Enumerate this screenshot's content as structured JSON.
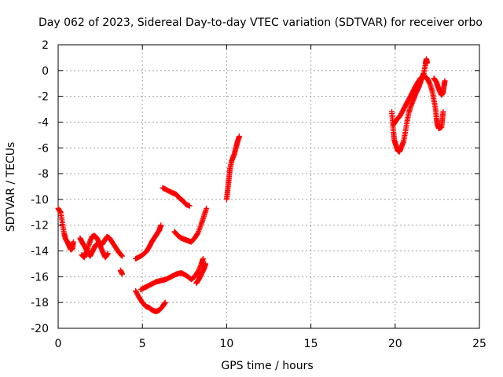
{
  "chart_data": {
    "type": "scatter",
    "title": "Day 062 of 2023, Sidereal Day-to-day VTEC variation (SDTVAR) for receiver orbo",
    "xlabel": "GPS time / hours",
    "ylabel": "SDTVAR / TECUs",
    "xlim": [
      0,
      25
    ],
    "ylim": [
      -20,
      2
    ],
    "xticks": [
      "0",
      "5",
      "10",
      "15",
      "20",
      "25"
    ],
    "yticks": [
      "2",
      "0",
      "-2",
      "-4",
      "-6",
      "-8",
      "-10",
      "-12",
      "-14",
      "-16",
      "-18",
      "-20"
    ],
    "grid": true,
    "marker": "+",
    "series_color": "#ff0000",
    "segments": [
      {
        "name": "seg-a",
        "points": [
          [
            0.0,
            -10.7
          ],
          [
            0.15,
            -11.0
          ],
          [
            0.25,
            -11.8
          ],
          [
            0.35,
            -12.6
          ],
          [
            0.45,
            -13.1
          ],
          [
            0.55,
            -13.3
          ],
          [
            0.65,
            -13.6
          ],
          [
            0.75,
            -13.9
          ],
          [
            0.85,
            -13.8
          ],
          [
            0.9,
            -13.3
          ]
        ]
      },
      {
        "name": "seg-b",
        "points": [
          [
            1.3,
            -13.0
          ],
          [
            1.45,
            -13.4
          ],
          [
            1.6,
            -13.7
          ],
          [
            1.75,
            -14.1
          ],
          [
            1.9,
            -14.4
          ],
          [
            2.05,
            -14.0
          ],
          [
            2.2,
            -13.6
          ],
          [
            2.35,
            -13.4
          ],
          [
            2.5,
            -13.6
          ],
          [
            2.65,
            -14.1
          ],
          [
            2.8,
            -14.5
          ],
          [
            2.95,
            -14.2
          ]
        ]
      },
      {
        "name": "seg-c",
        "points": [
          [
            1.4,
            -14.3
          ],
          [
            1.55,
            -14.5
          ],
          [
            1.7,
            -14.0
          ],
          [
            1.85,
            -13.4
          ],
          [
            2.0,
            -12.9
          ],
          [
            2.15,
            -12.8
          ],
          [
            2.3,
            -13.0
          ],
          [
            2.45,
            -13.4
          ],
          [
            2.6,
            -13.5
          ],
          [
            2.75,
            -13.2
          ],
          [
            2.9,
            -12.9
          ],
          [
            3.05,
            -13.0
          ],
          [
            3.2,
            -13.3
          ],
          [
            3.4,
            -13.7
          ],
          [
            3.6,
            -14.1
          ],
          [
            3.8,
            -14.4
          ]
        ]
      },
      {
        "name": "seg-d",
        "points": [
          [
            3.7,
            -15.5
          ],
          [
            3.8,
            -15.8
          ]
        ]
      },
      {
        "name": "seg-e",
        "points": [
          [
            4.6,
            -14.6
          ],
          [
            4.9,
            -14.4
          ],
          [
            5.2,
            -14.1
          ],
          [
            5.4,
            -13.7
          ],
          [
            5.55,
            -13.3
          ],
          [
            5.7,
            -13.0
          ],
          [
            5.85,
            -12.7
          ],
          [
            6.0,
            -12.4
          ],
          [
            6.1,
            -12.0
          ]
        ]
      },
      {
        "name": "seg-f",
        "points": [
          [
            4.6,
            -17.1
          ],
          [
            4.8,
            -17.6
          ],
          [
            5.0,
            -18.0
          ],
          [
            5.2,
            -18.3
          ],
          [
            5.4,
            -18.4
          ],
          [
            5.6,
            -18.6
          ],
          [
            5.8,
            -18.7
          ],
          [
            6.0,
            -18.6
          ],
          [
            6.2,
            -18.3
          ],
          [
            6.35,
            -18.0
          ]
        ]
      },
      {
        "name": "seg-g",
        "points": [
          [
            4.9,
            -17.0
          ],
          [
            5.2,
            -16.8
          ],
          [
            5.5,
            -16.6
          ],
          [
            5.8,
            -16.4
          ],
          [
            6.1,
            -16.3
          ],
          [
            6.4,
            -16.2
          ],
          [
            6.7,
            -16.0
          ],
          [
            7.0,
            -15.8
          ],
          [
            7.3,
            -15.7
          ],
          [
            7.6,
            -15.9
          ],
          [
            7.9,
            -16.2
          ],
          [
            8.1,
            -16.0
          ],
          [
            8.3,
            -15.6
          ],
          [
            8.5,
            -15.0
          ],
          [
            8.6,
            -14.6
          ]
        ]
      },
      {
        "name": "seg-h",
        "points": [
          [
            8.2,
            -16.5
          ],
          [
            8.35,
            -16.2
          ],
          [
            8.5,
            -15.8
          ],
          [
            8.65,
            -15.4
          ],
          [
            8.75,
            -15.0
          ]
        ]
      },
      {
        "name": "seg-i",
        "points": [
          [
            6.2,
            -9.1
          ],
          [
            6.5,
            -9.3
          ],
          [
            6.8,
            -9.5
          ],
          [
            7.0,
            -9.6
          ],
          [
            7.2,
            -9.9
          ],
          [
            7.4,
            -10.1
          ],
          [
            7.6,
            -10.4
          ],
          [
            7.8,
            -10.5
          ]
        ]
      },
      {
        "name": "seg-j",
        "points": [
          [
            6.9,
            -12.5
          ],
          [
            7.1,
            -12.8
          ],
          [
            7.3,
            -13.0
          ],
          [
            7.5,
            -13.1
          ],
          [
            7.7,
            -13.2
          ],
          [
            7.9,
            -13.3
          ],
          [
            8.1,
            -13.0
          ],
          [
            8.3,
            -12.6
          ],
          [
            8.5,
            -11.9
          ],
          [
            8.65,
            -11.3
          ],
          [
            8.8,
            -10.7
          ]
        ]
      },
      {
        "name": "seg-k",
        "points": [
          [
            10.0,
            -10.0
          ],
          [
            10.05,
            -9.4
          ],
          [
            10.1,
            -8.8
          ],
          [
            10.15,
            -8.2
          ],
          [
            10.2,
            -7.6
          ],
          [
            10.3,
            -7.0
          ],
          [
            10.45,
            -6.5
          ],
          [
            10.55,
            -6.0
          ],
          [
            10.65,
            -5.5
          ],
          [
            10.75,
            -5.1
          ]
        ]
      },
      {
        "name": "seg-l",
        "points": [
          [
            19.8,
            -3.2
          ],
          [
            19.85,
            -4.0
          ],
          [
            19.9,
            -4.8
          ],
          [
            19.95,
            -5.4
          ],
          [
            20.05,
            -5.8
          ],
          [
            20.15,
            -6.2
          ],
          [
            20.25,
            -6.3
          ],
          [
            20.35,
            -6.0
          ],
          [
            20.5,
            -5.5
          ],
          [
            20.6,
            -4.8
          ],
          [
            20.7,
            -4.0
          ],
          [
            20.8,
            -3.3
          ],
          [
            20.95,
            -2.7
          ],
          [
            21.1,
            -2.2
          ],
          [
            21.25,
            -1.7
          ],
          [
            21.4,
            -1.3
          ],
          [
            21.5,
            -0.9
          ],
          [
            21.6,
            -0.5
          ],
          [
            21.7,
            -0.2
          ],
          [
            21.8,
            0.5
          ],
          [
            21.85,
            0.9
          ],
          [
            21.9,
            0.6
          ]
        ]
      },
      {
        "name": "seg-m",
        "points": [
          [
            19.9,
            -4.2
          ],
          [
            20.1,
            -3.8
          ],
          [
            20.3,
            -3.5
          ],
          [
            20.5,
            -3.0
          ],
          [
            20.7,
            -2.5
          ],
          [
            20.9,
            -2.0
          ],
          [
            21.1,
            -1.5
          ],
          [
            21.3,
            -1.0
          ],
          [
            21.5,
            -0.6
          ],
          [
            21.7,
            -0.4
          ],
          [
            21.9,
            -0.6
          ],
          [
            22.05,
            -1.0
          ],
          [
            22.2,
            -1.6
          ],
          [
            22.3,
            -2.3
          ],
          [
            22.4,
            -3.0
          ],
          [
            22.45,
            -3.7
          ],
          [
            22.5,
            -4.2
          ],
          [
            22.6,
            -4.5
          ],
          [
            22.75,
            -4.4
          ],
          [
            22.8,
            -3.8
          ],
          [
            22.85,
            -3.2
          ]
        ]
      },
      {
        "name": "seg-n",
        "points": [
          [
            22.3,
            -0.6
          ],
          [
            22.45,
            -0.9
          ],
          [
            22.55,
            -1.3
          ],
          [
            22.65,
            -1.6
          ],
          [
            22.75,
            -1.9
          ],
          [
            22.85,
            -1.7
          ],
          [
            22.9,
            -1.2
          ],
          [
            22.95,
            -0.8
          ]
        ]
      }
    ]
  }
}
